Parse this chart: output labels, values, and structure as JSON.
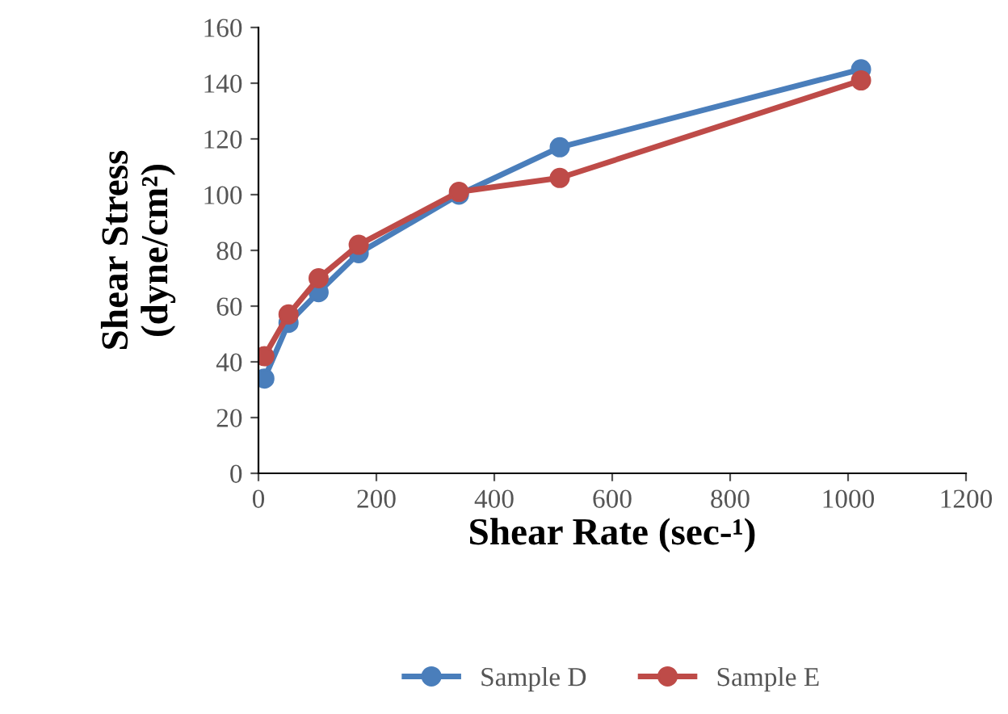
{
  "chart_data": {
    "type": "line",
    "xlabel": "Shear Rate (sec-¹)",
    "ylabel": "Shear Stress\n(dyne/cm²)",
    "x": [
      10,
      51,
      102,
      170,
      340,
      511,
      1022
    ],
    "series": [
      {
        "name": "Sample D",
        "color": "#4a7ebb",
        "values": [
          34,
          54,
          65,
          79,
          100,
          117,
          145
        ]
      },
      {
        "name": "Sample E",
        "color": "#be4b48",
        "values": [
          42,
          57,
          70,
          82,
          101,
          106,
          141
        ]
      }
    ],
    "xlim": [
      0,
      1200
    ],
    "xticks": [
      0,
      200,
      400,
      600,
      800,
      1000,
      1200
    ],
    "ylim": [
      0,
      160
    ],
    "yticks": [
      0,
      20,
      40,
      60,
      80,
      100,
      120,
      140,
      160
    ],
    "grid": false,
    "legend": "bottom",
    "marker": "circle",
    "line_style": "solid"
  }
}
